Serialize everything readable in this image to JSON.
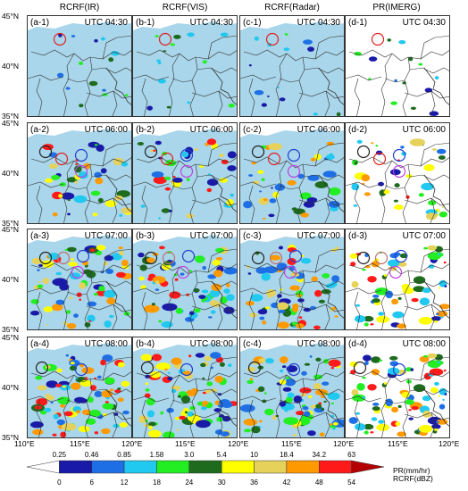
{
  "columns": [
    "RCRF(IR)",
    "RCRF(VIS)",
    "RCRF(Radar)",
    "PR(IMERG)"
  ],
  "rows": [
    {
      "labels": [
        "(a-1)",
        "(b-1)",
        "(c-1)",
        "(d-1)"
      ],
      "time": "UTC 04:30"
    },
    {
      "labels": [
        "(a-2)",
        "(b-2)",
        "(c-2)",
        "(d-2)"
      ],
      "time": "UTC 06:00"
    },
    {
      "labels": [
        "(a-3)",
        "(b-3)",
        "(c-3)",
        "(d-3)"
      ],
      "time": "UTC 07:00"
    },
    {
      "labels": [
        "(a-4)",
        "(b-4)",
        "(c-4)",
        "(d-4)"
      ],
      "time": "UTC 08:00"
    }
  ],
  "lat_ticks": [
    "45°N",
    "40°N",
    "35°N"
  ],
  "lon_ticks": [
    "110°E",
    "115°E",
    "120°E",
    "115°E",
    "120°E",
    "115°E",
    "120°E",
    "115°E",
    "120°E"
  ],
  "colorbar": {
    "pr_ticks": [
      "0.25",
      "0.46",
      "0.85",
      "1.58",
      "3.0",
      "5.4",
      "10",
      "18.4",
      "34.2",
      "63"
    ],
    "pr_unit": "PR(mm/hr)",
    "rcrf_ticks": [
      "0",
      "6",
      "12",
      "18",
      "24",
      "30",
      "36",
      "42",
      "48",
      "54"
    ],
    "rcrf_unit": "RCRF(dBZ)",
    "colors": [
      "#ffffff",
      "#1a1aa8",
      "#1e6fe6",
      "#21c8f0",
      "#22ee22",
      "#1e6b1e",
      "#ffff00",
      "#e6d25a",
      "#ff9900",
      "#ff1a1a",
      "#b30000"
    ]
  },
  "chart_data": {
    "type": "heatmap",
    "panels": 16,
    "grid_rows": 4,
    "grid_cols": 4,
    "lat_range": [
      35,
      45
    ],
    "lon_range": [
      110,
      120
    ],
    "variables": [
      "RCRF(IR)",
      "RCRF(VIS)",
      "RCRF(Radar)",
      "PR(IMERG)"
    ],
    "times": [
      "UTC 04:30",
      "UTC 06:00",
      "UTC 07:00",
      "UTC 08:00"
    ],
    "rcrf_levels_dbz": [
      0,
      6,
      12,
      18,
      24,
      30,
      36,
      42,
      48,
      54
    ],
    "pr_levels_mmhr": [
      0.25,
      0.46,
      0.85,
      1.58,
      3.0,
      5.4,
      10,
      18.4,
      34.2,
      63
    ],
    "circles": {
      "red": "#e02020",
      "blue": "#2040d0",
      "purple": "#c040e0",
      "black": "#222222"
    }
  }
}
